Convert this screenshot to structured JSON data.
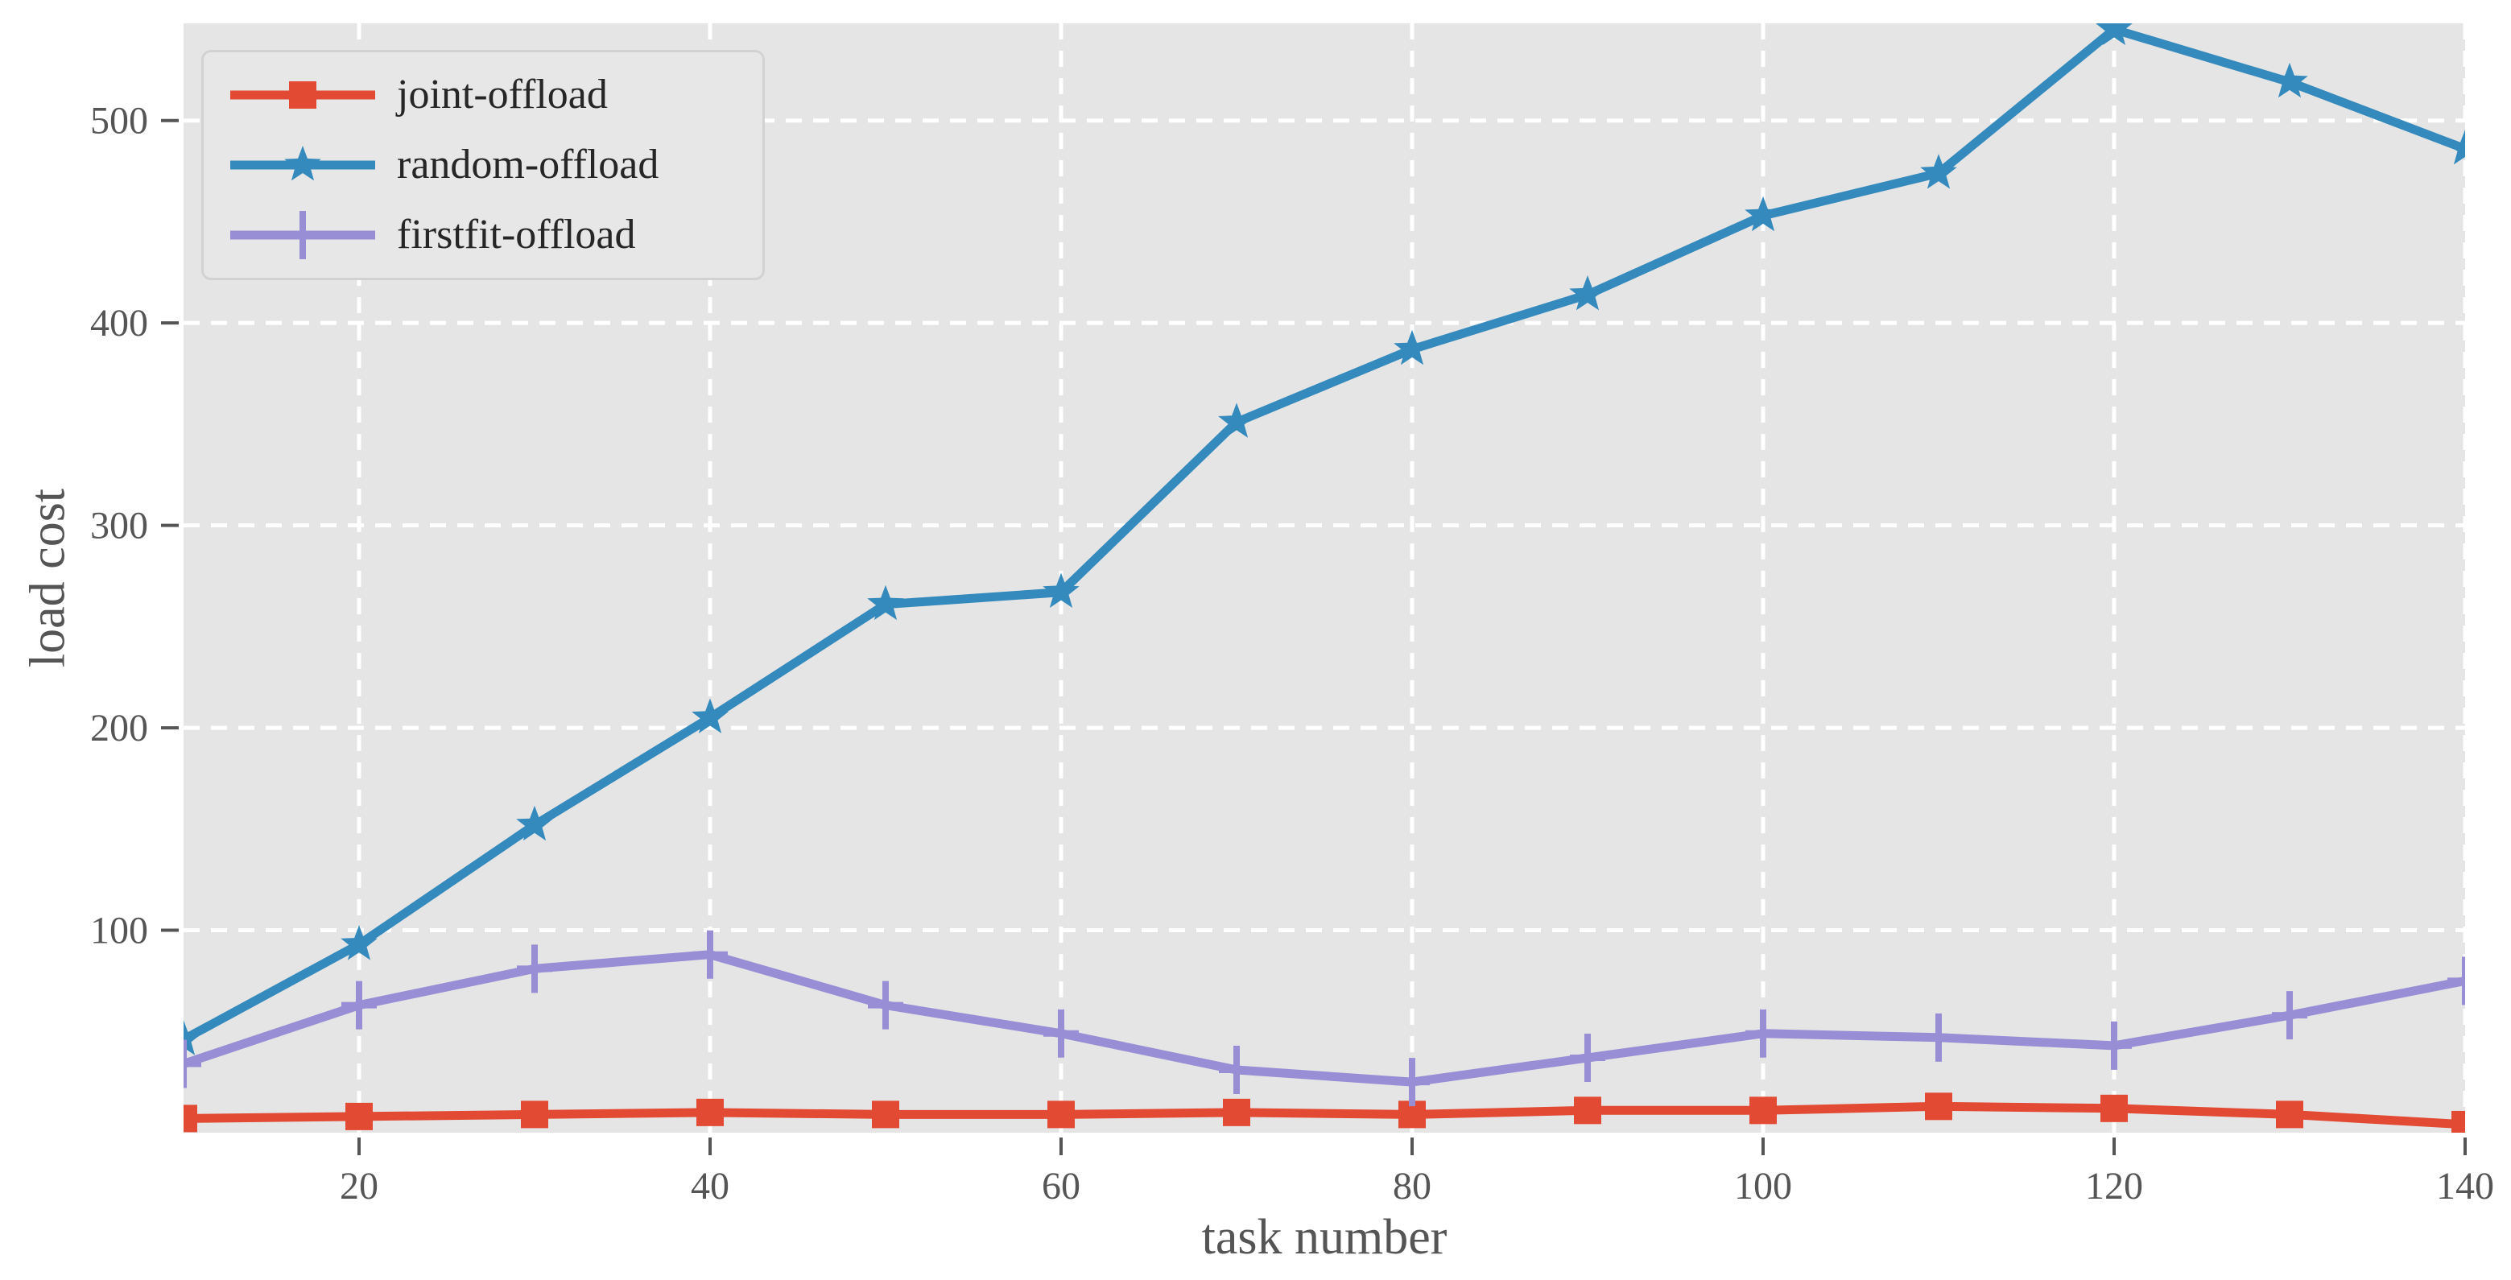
{
  "chart_data": {
    "type": "line",
    "title": "",
    "xlabel": "task number",
    "ylabel": "load cost",
    "x": [
      10,
      20,
      30,
      40,
      50,
      60,
      70,
      80,
      90,
      100,
      110,
      120,
      130,
      140
    ],
    "x_ticks": [
      "20",
      "40",
      "60",
      "80",
      "100",
      "120",
      "140"
    ],
    "x_tick_values": [
      20,
      40,
      60,
      80,
      100,
      120,
      140
    ],
    "y_ticks": [
      "100",
      "200",
      "300",
      "400",
      "500"
    ],
    "y_tick_values": [
      100,
      200,
      300,
      400,
      500
    ],
    "xlim": [
      10,
      140
    ],
    "ylim": [
      0,
      548
    ],
    "grid": "on",
    "legend_position": "upper left",
    "colors": {
      "plot_background": "#e5e5e5",
      "figure_background": "#ffffff",
      "gridline": "#ffffff",
      "tick_text": "#555555",
      "legend_text": "#262626",
      "legend_background": "#e7e7e7"
    },
    "series": [
      {
        "name": "joint-offload",
        "color": "#e24a33",
        "marker": "square",
        "values": [
          7,
          8,
          9,
          10,
          9,
          9,
          10,
          9,
          11,
          11,
          13,
          12,
          9,
          4
        ]
      },
      {
        "name": "random-offload",
        "color": "#348abd",
        "marker": "star",
        "values": [
          46,
          93,
          152,
          205,
          261,
          267,
          351,
          387,
          414,
          453,
          474,
          545,
          519,
          486
        ]
      },
      {
        "name": "firstfit-offload",
        "color": "#988ed5",
        "marker": "plus",
        "values": [
          34,
          63,
          81,
          88,
          63,
          49,
          31,
          25,
          37,
          49,
          47,
          43,
          58,
          75
        ]
      }
    ]
  }
}
